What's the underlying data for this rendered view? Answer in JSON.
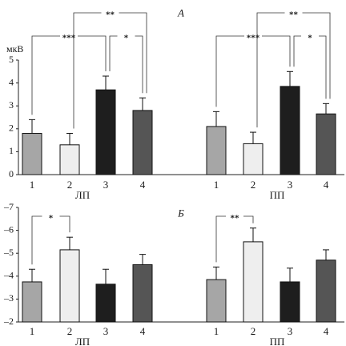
{
  "chart_data": [
    {
      "type": "bar",
      "panel_label": "А",
      "ylabel": "мкВ",
      "ylim": [
        0,
        5
      ],
      "yticks": [
        "0",
        "1",
        "2",
        "3",
        "4",
        "5"
      ],
      "groups": [
        {
          "name": "ЛП",
          "categories": [
            "1",
            "2",
            "3",
            "4"
          ],
          "values": [
            1.8,
            1.3,
            3.7,
            2.8
          ],
          "errors": [
            0.6,
            0.5,
            0.6,
            0.55
          ],
          "colors": [
            "#a6a6a6",
            "#eeeeee",
            "#1e1e1e",
            "#555555"
          ],
          "significance": [
            {
              "from": 1,
              "to": 3,
              "label": "***"
            },
            {
              "from": 2,
              "to": 4,
              "label": "**"
            },
            {
              "from": 3,
              "to": 4,
              "label": "*"
            }
          ]
        },
        {
          "name": "ПП",
          "categories": [
            "1",
            "2",
            "3",
            "4"
          ],
          "values": [
            2.1,
            1.35,
            3.85,
            2.65
          ],
          "errors": [
            0.65,
            0.5,
            0.65,
            0.45
          ],
          "colors": [
            "#a6a6a6",
            "#eeeeee",
            "#1e1e1e",
            "#555555"
          ],
          "significance": [
            {
              "from": 1,
              "to": 3,
              "label": "***"
            },
            {
              "from": 2,
              "to": 4,
              "label": "**"
            },
            {
              "from": 3,
              "to": 4,
              "label": "*"
            }
          ]
        }
      ]
    },
    {
      "type": "bar",
      "panel_label": "Б",
      "ylabel": "",
      "ylim": [
        -2,
        -7
      ],
      "yticks": [
        "–2",
        "–3",
        "–4",
        "–5",
        "–6",
        "–7"
      ],
      "groups": [
        {
          "name": "ЛП",
          "categories": [
            "1",
            "2",
            "3",
            "4"
          ],
          "values": [
            -3.75,
            -5.15,
            -3.65,
            -4.5
          ],
          "errors": [
            0.55,
            0.55,
            0.65,
            0.45
          ],
          "colors": [
            "#a6a6a6",
            "#eeeeee",
            "#1e1e1e",
            "#555555"
          ],
          "significance": [
            {
              "from": 1,
              "to": 2,
              "label": "*"
            }
          ]
        },
        {
          "name": "ПП",
          "categories": [
            "1",
            "2",
            "3",
            "4"
          ],
          "values": [
            -3.85,
            -5.5,
            -3.75,
            -4.7
          ],
          "errors": [
            0.55,
            0.6,
            0.6,
            0.45
          ],
          "colors": [
            "#a6a6a6",
            "#eeeeee",
            "#1e1e1e",
            "#555555"
          ],
          "significance": [
            {
              "from": 1,
              "to": 2,
              "label": "**"
            }
          ]
        }
      ]
    }
  ]
}
